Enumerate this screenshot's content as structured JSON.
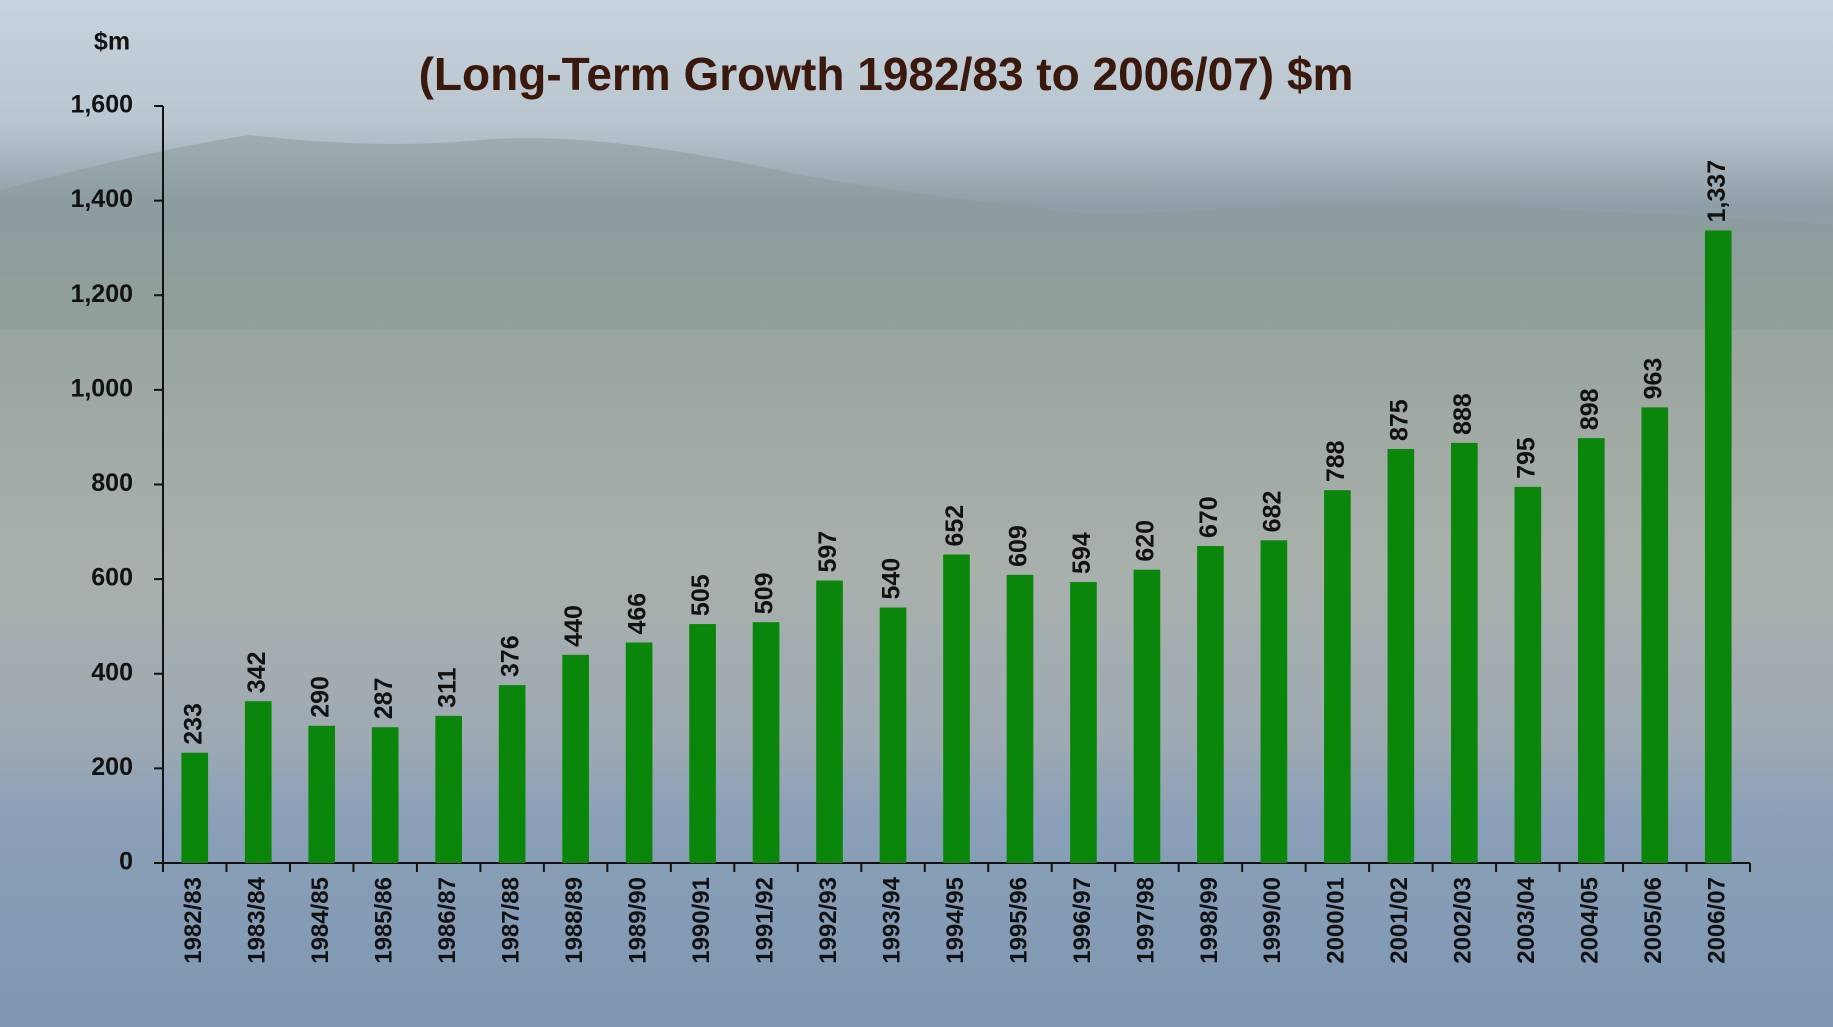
{
  "chart_data": {
    "type": "bar",
    "title": "(Long-Term Growth 1982/83 to 2006/07) $m",
    "y_label": "$m",
    "categories": [
      "1982/83",
      "1983/84",
      "1984/85",
      "1985/86",
      "1986/87",
      "1987/88",
      "1988/89",
      "1989/90",
      "1990/91",
      "1991/92",
      "1992/93",
      "1993/94",
      "1994/95",
      "1995/96",
      "1996/97",
      "1997/98",
      "1998/99",
      "1999/00",
      "2000/01",
      "2001/02",
      "2002/03",
      "2003/04",
      "2004/05",
      "2005/06",
      "2006/07"
    ],
    "values": [
      233,
      342,
      290,
      287,
      311,
      376,
      440,
      466,
      505,
      509,
      597,
      540,
      652,
      609,
      594,
      620,
      670,
      682,
      788,
      875,
      888,
      795,
      898,
      963,
      1337
    ],
    "value_labels": [
      "233",
      "342",
      "290",
      "287",
      "311",
      "376",
      "440",
      "466",
      "505",
      "509",
      "597",
      "540",
      "652",
      "609",
      "594",
      "620",
      "670",
      "682",
      "788",
      "875",
      "888",
      "795",
      "898",
      "963",
      "1,337"
    ],
    "color": "#0a870a",
    "ylim": [
      0,
      1600
    ],
    "yticks": [
      0,
      200,
      400,
      600,
      800,
      {
        "value": 1000,
        "label": "1,000"
      },
      {
        "value": 1200,
        "label": "1,200"
      },
      {
        "value": 1400,
        "label": "1,400"
      },
      {
        "value": 1600,
        "label": "1,600"
      }
    ],
    "grid": false
  }
}
